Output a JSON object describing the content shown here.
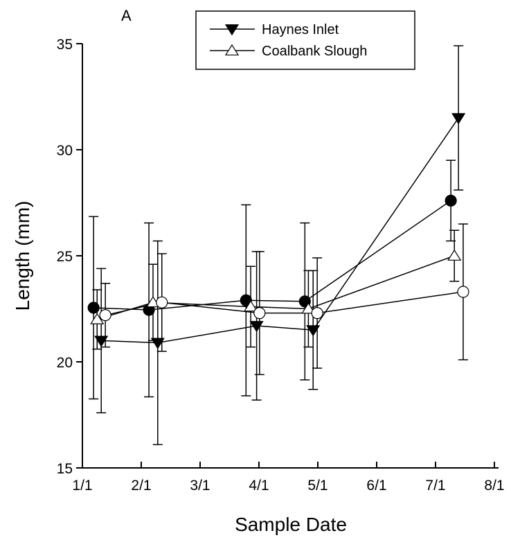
{
  "chart_data": {
    "type": "line",
    "annotation": "A",
    "x_label": "Sample Date",
    "y_label": "Length (mm)",
    "xlim": [
      0,
      7
    ],
    "xticks": [
      {
        "value": 0,
        "label": "1/1"
      },
      {
        "value": 1,
        "label": "2/1"
      },
      {
        "value": 2,
        "label": "3/1"
      },
      {
        "value": 3,
        "label": "4/1"
      },
      {
        "value": 4,
        "label": "5/1"
      },
      {
        "value": 5,
        "label": "6/1"
      },
      {
        "value": 6,
        "label": "7/1"
      },
      {
        "value": 7,
        "label": "8/1"
      }
    ],
    "ylim": [
      15,
      35
    ],
    "yticks": [
      15,
      20,
      25,
      30,
      35
    ],
    "legend": "top-center",
    "series": [
      {
        "marker": "circle",
        "filled": true,
        "color": "#000000",
        "x": [
          0.19,
          1.13,
          2.78,
          3.78,
          6.26
        ],
        "values": [
          22.55,
          22.45,
          22.9,
          22.85,
          27.6
        ],
        "errors": [
          4.3,
          4.1,
          4.5,
          3.7,
          1.9
        ]
      },
      {
        "name": "Haynes Inlet",
        "marker": "triangle-down",
        "filled": true,
        "color": "#000000",
        "x": [
          0.32,
          1.28,
          2.96,
          3.92,
          6.39
        ],
        "values": [
          21.0,
          20.9,
          21.7,
          21.5,
          31.5
        ],
        "errors": [
          3.4,
          4.8,
          3.5,
          2.8,
          3.4
        ]
      },
      {
        "name": "Coalbank Slough",
        "marker": "triangle-up",
        "filled": false,
        "color": "#000000",
        "x": [
          0.25,
          1.2,
          2.86,
          3.84,
          6.32
        ],
        "values": [
          22.0,
          22.8,
          22.6,
          22.5,
          25.0
        ],
        "errors": [
          1.4,
          1.8,
          1.9,
          1.8,
          1.2
        ]
      },
      {
        "marker": "circle",
        "filled": false,
        "color": "#000000",
        "x": [
          0.39,
          1.35,
          3.01,
          3.99,
          6.47
        ],
        "values": [
          22.2,
          22.8,
          22.3,
          22.3,
          23.3
        ],
        "errors": [
          1.5,
          2.3,
          2.9,
          2.6,
          3.2
        ]
      }
    ]
  }
}
